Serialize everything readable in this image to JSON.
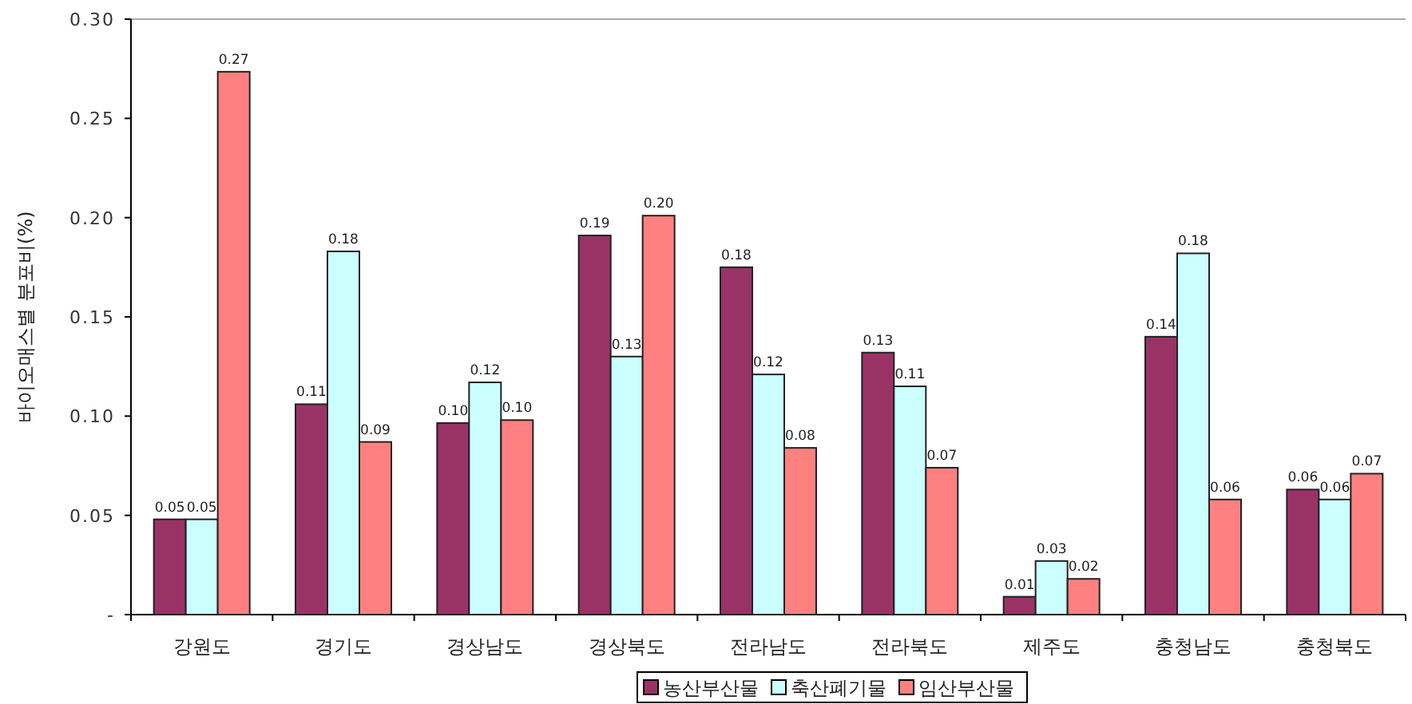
{
  "chart_data": {
    "type": "bar",
    "ylabel": "바이오매스별 분포비(%)",
    "categories": [
      "강원도",
      "경기도",
      "경상남도",
      "경상북도",
      "전라남도",
      "전라북도",
      "제주도",
      "충청남도",
      "충청북도"
    ],
    "series": [
      {
        "name": "농산부산물",
        "color": "#993366",
        "values": [
          0.048,
          0.106,
          0.0965,
          0.191,
          0.175,
          0.132,
          0.009,
          0.14,
          0.063
        ],
        "value_labels": [
          "0.05",
          "0.11",
          "0.10",
          "0.19",
          "0.18",
          "0.13",
          "0.01",
          "0.14",
          "0.06"
        ]
      },
      {
        "name": "축산폐기물",
        "color": "#ccffff",
        "values": [
          0.048,
          0.183,
          0.117,
          0.13,
          0.121,
          0.115,
          0.027,
          0.182,
          0.058
        ],
        "value_labels": [
          "0.05",
          "0.18",
          "0.12",
          "0.13",
          "0.12",
          "0.11",
          "0.03",
          "0.18",
          "0.06"
        ]
      },
      {
        "name": "임산부산물",
        "color": "#ff8080",
        "values": [
          0.2735,
          0.087,
          0.098,
          0.201,
          0.084,
          0.074,
          0.018,
          0.058,
          0.071
        ],
        "value_labels": [
          "0.27",
          "0.09",
          "0.10",
          "0.20",
          "0.08",
          "0.07",
          "0.02",
          "0.06",
          "0.07"
        ]
      }
    ],
    "ylim": [
      0,
      0.3
    ],
    "yticks": [
      {
        "value": 0,
        "label": "-"
      },
      0.05,
      {
        "value": 0.1,
        "label": "0.10"
      },
      0.15,
      {
        "value": 0.2,
        "label": "0.20"
      },
      0.25,
      {
        "value": 0.3,
        "label": "0.30"
      }
    ],
    "grid": false,
    "legend": "bottom"
  }
}
